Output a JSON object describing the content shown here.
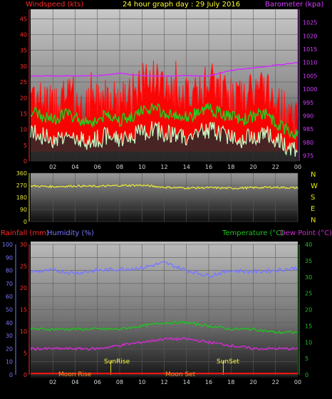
{
  "header": {
    "left_label": "Windspeed (kts)",
    "center_label": "24 hour graph day : 29 July 2016",
    "right_label": "Barometer (kpa)"
  },
  "colors": {
    "background": "#000000",
    "header_left": "#ff2a2a",
    "header_center": "#ffff2a",
    "header_right": "#d63cff",
    "wind_gust": "#ff0000",
    "wind_avg": "#20d020",
    "wind_avg_light": "#c8ffc8",
    "barometer": "#d02cff",
    "wind_dir": "#e6e63a",
    "humidity": "#7a78ff",
    "temperature": "#22c022",
    "dewpoint": "#d02cd0",
    "rainfall": "#ff1010",
    "sun_moon_labels": "#ffff40",
    "moon_labels": "#ff9a2a",
    "dir_letters": "#e6e600"
  },
  "chart_data": [
    {
      "type": "line",
      "panel": "wind-barometer",
      "x_ticks": [
        "02",
        "04",
        "06",
        "08",
        "10",
        "12",
        "14",
        "16",
        "18",
        "20",
        "22",
        "00"
      ],
      "left_axis_ticks": [
        "0",
        "5",
        "10",
        "15",
        "20",
        "25",
        "30",
        "35",
        "40",
        "45"
      ],
      "right_axis_ticks": [
        "975",
        "980",
        "985",
        "990",
        "995",
        "1000",
        "1005",
        "1010",
        "1015",
        "1020",
        "1025"
      ],
      "ylim_left": [
        0,
        48
      ],
      "ylim_right": [
        973,
        1030
      ],
      "x_range": [
        0,
        24
      ],
      "series": [
        {
          "key": "gust",
          "x": [
            0,
            1,
            2,
            3,
            4,
            5,
            6,
            7,
            8,
            9,
            10,
            11,
            12,
            13,
            14,
            15,
            16,
            17,
            18,
            19,
            20,
            21,
            22,
            23,
            24
          ],
          "values": [
            22,
            20,
            18,
            21,
            19,
            17,
            20,
            22,
            19,
            21,
            25,
            27,
            24,
            22,
            20,
            21,
            26,
            23,
            21,
            20,
            22,
            24,
            18,
            16,
            12
          ]
        },
        {
          "key": "avg",
          "x": [
            0,
            1,
            2,
            3,
            4,
            5,
            6,
            7,
            8,
            9,
            10,
            11,
            12,
            13,
            14,
            15,
            16,
            17,
            18,
            19,
            20,
            21,
            22,
            23,
            24
          ],
          "values": [
            16,
            14,
            13,
            15,
            14,
            12,
            13,
            15,
            13,
            14,
            16,
            17,
            15,
            14,
            14,
            15,
            17,
            15,
            14,
            13,
            14,
            15,
            12,
            10,
            8
          ]
        },
        {
          "key": "avg_light",
          "x": [
            0,
            1,
            2,
            3,
            4,
            5,
            6,
            7,
            8,
            9,
            10,
            11,
            12,
            13,
            14,
            15,
            16,
            17,
            18,
            19,
            20,
            21,
            22,
            23,
            24
          ],
          "values": [
            9,
            8,
            7,
            8,
            8,
            6,
            7,
            8,
            7,
            8,
            9,
            10,
            9,
            8,
            8,
            9,
            10,
            9,
            8,
            7,
            8,
            9,
            7,
            5,
            4
          ]
        },
        {
          "key": "barometer",
          "axis": "right",
          "x": [
            0,
            2,
            4,
            6,
            8,
            10,
            12,
            14,
            16,
            18,
            20,
            22,
            24
          ],
          "values": [
            1005,
            1005,
            1005,
            1005,
            1006,
            1005,
            1005,
            1005,
            1005,
            1007,
            1008,
            1009,
            1010
          ]
        }
      ]
    },
    {
      "type": "line",
      "panel": "wind-direction",
      "left_axis_ticks": [
        "0",
        "90",
        "180",
        "270",
        "360"
      ],
      "direction_letters": [
        "N",
        "W",
        "S",
        "E",
        "N"
      ],
      "ylim": [
        0,
        360
      ],
      "series": [
        {
          "key": "direction",
          "x": [
            0,
            2,
            4,
            6,
            8,
            10,
            12,
            14,
            16,
            18,
            20,
            22,
            24
          ],
          "values": [
            265,
            260,
            265,
            262,
            268,
            270,
            255,
            250,
            252,
            248,
            252,
            255,
            250
          ]
        }
      ]
    },
    {
      "type": "line",
      "panel": "rain-humidity-temp",
      "header_left_a": "Rainfall (mm)",
      "header_left_b": "Humidity (%)",
      "header_right_a": "Temperature (°C)",
      "header_right_b": "Dew Point (°C)",
      "x_ticks": [
        "02",
        "04",
        "06",
        "08",
        "10",
        "12",
        "14",
        "16",
        "18",
        "20",
        "22",
        "00"
      ],
      "humidity_ticks": [
        "0",
        "10",
        "20",
        "30",
        "40",
        "50",
        "60",
        "70",
        "80",
        "90",
        "100"
      ],
      "rain_ticks": [
        "0",
        "5",
        "10",
        "15",
        "20",
        "25",
        "30"
      ],
      "temp_ticks": [
        "0",
        "5",
        "10",
        "15",
        "20",
        "25",
        "30",
        "35",
        "40"
      ],
      "annotations": [
        "Moon Rise",
        "SunRise",
        "Moon Set",
        "SunSet"
      ],
      "series": [
        {
          "key": "humidity",
          "x": [
            0,
            2,
            4,
            6,
            8,
            10,
            12,
            14,
            16,
            18,
            20,
            22,
            24
          ],
          "values": [
            79,
            80,
            78,
            80,
            81,
            82,
            86,
            80,
            76,
            80,
            79,
            80,
            82
          ]
        },
        {
          "key": "temperature",
          "x": [
            0,
            2,
            4,
            6,
            8,
            10,
            12,
            14,
            16,
            18,
            20,
            22,
            24
          ],
          "values": [
            14,
            14,
            14,
            14,
            14,
            15,
            16,
            16,
            15,
            14,
            14,
            13,
            13
          ]
        },
        {
          "key": "dewpoint",
          "x": [
            0,
            2,
            4,
            6,
            8,
            10,
            12,
            14,
            16,
            18,
            20,
            22,
            24
          ],
          "values": [
            8,
            8,
            8,
            8,
            9,
            10,
            11,
            11,
            10,
            9,
            8,
            8,
            8
          ]
        },
        {
          "key": "rainfall",
          "x": [
            0,
            24
          ],
          "values": [
            0.3,
            0.3
          ]
        }
      ]
    }
  ]
}
